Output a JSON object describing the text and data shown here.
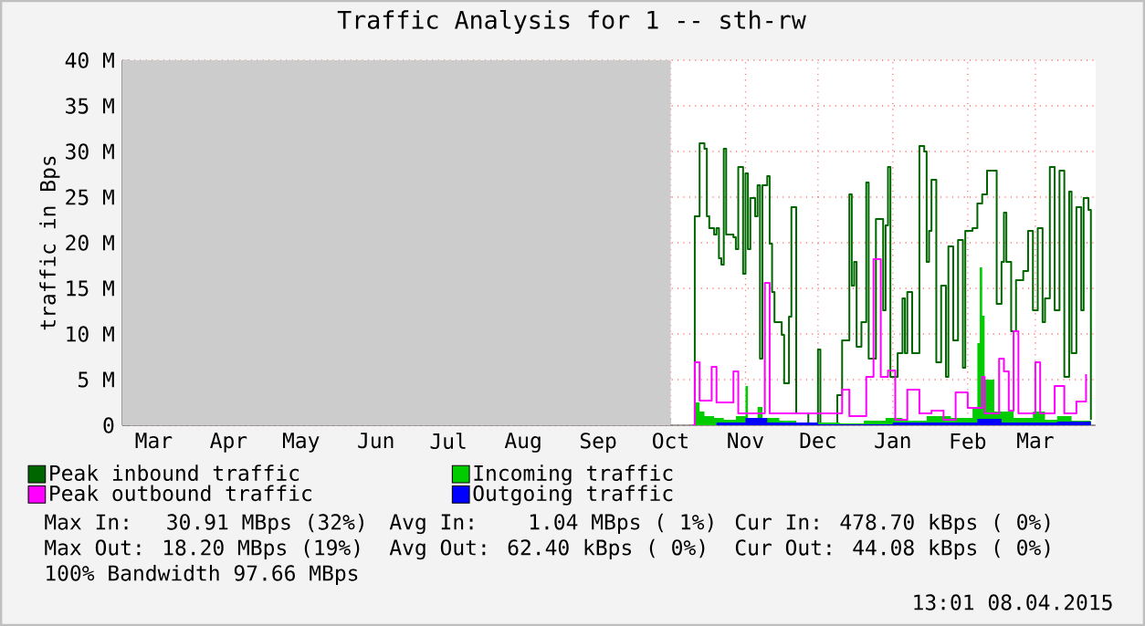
{
  "chart_data": {
    "type": "step",
    "title": "Traffic Analysis for 1 -- sth-rw",
    "ylabel": "traffic in Bps",
    "xlim": [
      "2014-02-16",
      "2015-03-26"
    ],
    "xticks": [
      {
        "value": "2014-03-01",
        "label": "Mar"
      },
      {
        "value": "2014-04-01",
        "label": "Apr"
      },
      {
        "value": "2014-05-01",
        "label": "May"
      },
      {
        "value": "2014-06-01",
        "label": "Jun"
      },
      {
        "value": "2014-07-01",
        "label": "Jul"
      },
      {
        "value": "2014-08-01",
        "label": "Aug"
      },
      {
        "value": "2014-09-01",
        "label": "Sep"
      },
      {
        "value": "2014-10-01",
        "label": "Oct"
      },
      {
        "value": "2014-11-01",
        "label": "Nov"
      },
      {
        "value": "2014-12-01",
        "label": "Dec"
      },
      {
        "value": "2015-01-01",
        "label": "Jan"
      },
      {
        "value": "2015-02-01",
        "label": "Feb"
      },
      {
        "value": "2015-03-01",
        "label": "Mar"
      }
    ],
    "ylim": [
      0,
      40
    ],
    "yticks": [
      0,
      {
        "value": 5,
        "label": "5 M"
      },
      {
        "value": 10,
        "label": "10 M"
      },
      {
        "value": 15,
        "label": "15 M"
      },
      {
        "value": 20,
        "label": "20 M"
      },
      {
        "value": 25,
        "label": "25 M"
      },
      {
        "value": 30,
        "label": "30 M"
      },
      {
        "value": 35,
        "label": "35 M"
      },
      {
        "value": 40,
        "label": "40 M"
      }
    ],
    "grid": true,
    "legend": "bottom",
    "bands": [
      {
        "axis": "x",
        "from": "2014-02-16",
        "to": "2014-10-01",
        "color": "#cccccc"
      }
    ],
    "series": [
      {
        "name": "Peak inbound traffic",
        "color": "#006600",
        "x": [
          "2014-10-10",
          "2014-10-11",
          "2014-10-13",
          "2014-10-15",
          "2014-10-16",
          "2014-10-17",
          "2014-10-19",
          "2014-10-20",
          "2014-10-21",
          "2014-10-22",
          "2014-10-23",
          "2014-10-24",
          "2014-10-27",
          "2014-10-28",
          "2014-10-29",
          "2014-10-31",
          "2014-11-01",
          "2014-11-02",
          "2014-11-03",
          "2014-11-05",
          "2014-11-06",
          "2014-11-07",
          "2014-11-08",
          "2014-11-10",
          "2014-11-11",
          "2014-11-12",
          "2014-11-13",
          "2014-11-16",
          "2014-11-17",
          "2014-11-19",
          "2014-11-20",
          "2014-11-21",
          "2014-11-22",
          "2014-11-27",
          "2014-12-01",
          "2014-12-02",
          "2014-12-09",
          "2014-12-11",
          "2014-12-14",
          "2014-12-15",
          "2014-12-16",
          "2014-12-17",
          "2014-12-19",
          "2014-12-21",
          "2014-12-22",
          "2014-12-25",
          "2014-12-28",
          "2014-12-29",
          "2014-12-30",
          "2014-12-31",
          "2015-01-03",
          "2015-01-05",
          "2015-01-06",
          "2015-01-07",
          "2015-01-09",
          "2015-01-12",
          "2015-01-14",
          "2015-01-15",
          "2015-01-16",
          "2015-01-17",
          "2015-01-19",
          "2015-01-21",
          "2015-01-23",
          "2015-01-24",
          "2015-01-26",
          "2015-01-28",
          "2015-01-30",
          "2015-01-31",
          "2015-02-03",
          "2015-02-05",
          "2015-02-07",
          "2015-02-09",
          "2015-02-12",
          "2015-02-13",
          "2015-02-15",
          "2015-02-16",
          "2015-02-17",
          "2015-02-19",
          "2015-02-21",
          "2015-02-24",
          "2015-02-26",
          "2015-02-28",
          "2015-03-02",
          "2015-03-04",
          "2015-03-05",
          "2015-03-07",
          "2015-03-09",
          "2015-03-11",
          "2015-03-13",
          "2015-03-15",
          "2015-03-16",
          "2015-03-18",
          "2015-03-20",
          "2015-03-21",
          "2015-03-23",
          "2015-03-24"
        ],
        "values": [
          0,
          22.9,
          30.9,
          30.3,
          22.9,
          21.6,
          20.9,
          21.6,
          18.3,
          17.6,
          30.3,
          20.9,
          20.6,
          19.3,
          28.3,
          16.6,
          27.6,
          19.3,
          24.9,
          22.9,
          26.3,
          7.3,
          26.3,
          27.3,
          19.9,
          14.6,
          11.3,
          9.9,
          4.6,
          11.9,
          23.9,
          23.9,
          1.3,
          0,
          8.3,
          0,
          3.3,
          9.3,
          25.3,
          15.3,
          17.9,
          8.6,
          11.3,
          26.6,
          7.3,
          22.6,
          12.6,
          21.9,
          28.3,
          5.3,
          7.9,
          13.9,
          7.9,
          14.6,
          7.9,
          30.6,
          30,
          17.9,
          21.3,
          26.9,
          6.9,
          15.3,
          5.3,
          19.6,
          9.3,
          20.3,
          6.3,
          21.3,
          21.6,
          24.3,
          25.3,
          27.9,
          27.9,
          13.3,
          17.9,
          23.3,
          17.9,
          10.3,
          15.9,
          16.9,
          21.3,
          12.6,
          21.6,
          11.3,
          13.9,
          28.3,
          12.6,
          27.9,
          5.3,
          25.6,
          7.9,
          23.9,
          12.6,
          24.9,
          23.6,
          0.6
        ]
      },
      {
        "name": "Incoming traffic",
        "type": "area",
        "color": "#00cc00",
        "x": [
          "2014-10-10",
          "2014-10-11",
          "2014-10-13",
          "2014-10-15",
          "2014-10-19",
          "2014-10-23",
          "2014-10-28",
          "2014-11-01",
          "2014-11-02",
          "2014-11-06",
          "2014-11-08",
          "2014-11-15",
          "2014-11-22",
          "2014-12-10",
          "2014-12-20",
          "2014-12-29",
          "2015-01-05",
          "2015-01-15",
          "2015-01-25",
          "2015-02-03",
          "2015-02-05",
          "2015-02-06",
          "2015-02-07",
          "2015-02-08",
          "2015-02-12",
          "2015-02-20",
          "2015-02-28",
          "2015-03-05",
          "2015-03-10",
          "2015-03-16",
          "2015-03-24"
        ],
        "values": [
          0,
          2.5,
          1.5,
          1.0,
          0.8,
          0.6,
          1.0,
          4.3,
          0.5,
          2.0,
          0.8,
          0.5,
          0.3,
          0.2,
          0.5,
          0.8,
          0.5,
          1.0,
          0.8,
          2.0,
          9.0,
          17.3,
          12.0,
          5.0,
          1.5,
          0.8,
          1.5,
          0.6,
          1.0,
          0.5,
          0.3
        ]
      },
      {
        "name": "Peak outbound traffic",
        "color": "#ff00ff",
        "x": [
          "2014-10-10",
          "2014-10-11",
          "2014-10-13",
          "2014-10-18",
          "2014-10-20",
          "2014-10-27",
          "2014-10-29",
          "2014-11-09",
          "2014-11-11",
          "2014-11-17",
          "2014-12-11",
          "2014-12-14",
          "2014-12-21",
          "2014-12-24",
          "2014-12-27",
          "2014-12-30",
          "2015-01-02",
          "2015-01-07",
          "2015-01-12",
          "2015-01-17",
          "2015-01-22",
          "2015-01-27",
          "2015-02-01",
          "2015-02-07",
          "2015-02-08",
          "2015-02-14",
          "2015-02-16",
          "2015-02-18",
          "2015-02-20",
          "2015-02-22",
          "2015-03-01",
          "2015-03-03",
          "2015-03-09",
          "2015-03-13",
          "2015-03-18",
          "2015-03-22"
        ],
        "values": [
          0,
          6.9,
          2.7,
          6.4,
          2.5,
          5.9,
          1.3,
          15.6,
          1.3,
          1.3,
          3.9,
          1.0,
          5.3,
          18.2,
          5.3,
          6.0,
          0.6,
          3.9,
          1.3,
          1.6,
          0.6,
          3.6,
          1.9,
          5.3,
          1.3,
          7.3,
          5.9,
          1.6,
          10.3,
          1.3,
          6.9,
          1.3,
          4.3,
          1.3,
          2.6,
          5.6
        ]
      },
      {
        "name": "Outgoing traffic",
        "type": "area",
        "color": "#0000ff",
        "x": [
          "2014-10-10",
          "2014-10-20",
          "2014-11-01",
          "2014-11-10",
          "2014-12-01",
          "2015-01-01",
          "2015-02-05",
          "2015-02-15",
          "2015-03-10",
          "2015-03-24"
        ],
        "values": [
          0,
          0.3,
          0.8,
          0.3,
          0.1,
          0.3,
          0.7,
          0.3,
          0.4,
          0.2
        ]
      }
    ],
    "annotations": [
      "Max In:  30.91 MBps (32%)",
      "Avg In:   1.04 MBps ( 1%)",
      "Cur In: 478.70 kBps ( 0%)",
      "Max Out: 18.20 MBps (19%)",
      "Avg Out: 62.40 kBps ( 0%)",
      "Cur Out: 44.08 kBps ( 0%)",
      "100% Bandwidth 97.66 MBps",
      "13:01 08.04.2015"
    ]
  }
}
